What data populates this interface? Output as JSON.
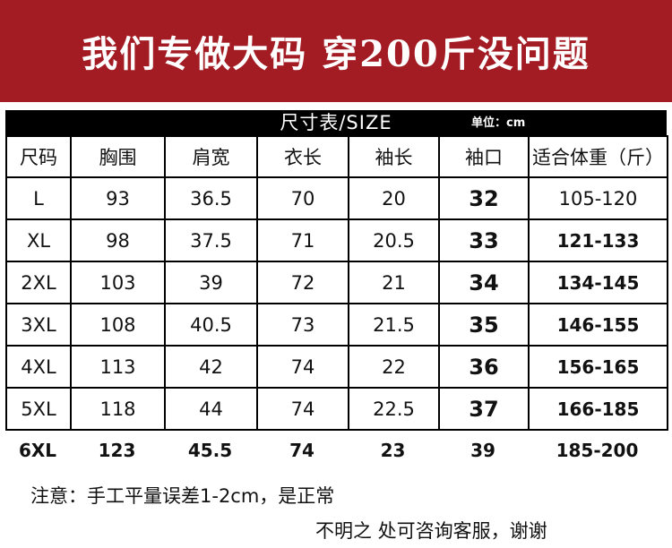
{
  "banner": {
    "title": "我们专做大码 穿200斤没问题"
  },
  "table": {
    "title": "尺寸表/SIZE",
    "unit": "单位：cm",
    "headers": [
      "尺码",
      "胸围",
      "肩宽",
      "衣长",
      "袖长",
      "袖口",
      "适合体重（斤）"
    ],
    "rows": [
      [
        "L",
        "93",
        "36.5",
        "70",
        "20",
        "32",
        "105-120"
      ],
      [
        "XL",
        "98",
        "37.5",
        "71",
        "20.5",
        "33",
        "121-133"
      ],
      [
        "2XL",
        "103",
        "39",
        "72",
        "21",
        "34",
        "134-145"
      ],
      [
        "3XL",
        "108",
        "40.5",
        "73",
        "21.5",
        "35",
        "146-155"
      ],
      [
        "4XL",
        "113",
        "42",
        "74",
        "22",
        "36",
        "156-165"
      ],
      [
        "5XL",
        "118",
        "44",
        "74",
        "22.5",
        "37",
        "166-185"
      ]
    ],
    "last_row": [
      "6XL",
      "123",
      "45.5",
      "74",
      "23",
      "39",
      "185-200"
    ]
  },
  "notes": {
    "line1": "注意：手工平量误差1-2cm，是正常",
    "line2": "不明之 处可咨询客服，谢谢"
  },
  "colors": {
    "banner_bg": "#a31c24",
    "table_head_bg": "#000000"
  }
}
